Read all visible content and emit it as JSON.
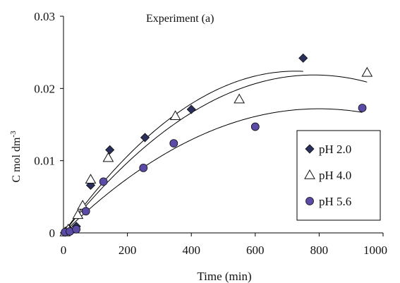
{
  "chart_data": {
    "type": "scatter",
    "title": "Experiment (a)",
    "xlabel": "Time (min)",
    "ylabel": "C mol dm",
    "ylabel_superscript": "-3",
    "xlim": [
      0,
      1000
    ],
    "ylim": [
      0,
      0.03
    ],
    "x_ticks": [
      0,
      200,
      400,
      600,
      800,
      1000
    ],
    "x_tick_labels": [
      "0",
      "200",
      "400",
      "600",
      "800",
      "1000"
    ],
    "y_ticks": [
      0,
      0.01,
      0.02,
      0.03
    ],
    "y_tick_labels": [
      "0",
      "0.01",
      "0.02",
      "0.03"
    ],
    "grid": false,
    "legend_position": "right",
    "series": [
      {
        "name": "pH 2.0",
        "marker": "diamond",
        "color": "#2b2f5c",
        "points": [
          [
            5,
            0.0001
          ],
          [
            10,
            0.0003
          ],
          [
            20,
            0.0004
          ],
          [
            40,
            0.0009
          ],
          [
            85,
            0.0066
          ],
          [
            145,
            0.0115
          ],
          [
            255,
            0.0132
          ],
          [
            400,
            0.0171
          ],
          [
            750,
            0.0242
          ]
        ],
        "fit": [
          -4.25e-08,
          6.17e-05,
          0.0
        ]
      },
      {
        "name": "pH 4.0",
        "marker": "triangle",
        "color": "#ffffff",
        "points": [
          [
            5,
            0.0001
          ],
          [
            15,
            0.0005
          ],
          [
            45,
            0.0025
          ],
          [
            60,
            0.0038
          ],
          [
            85,
            0.0074
          ],
          [
            140,
            0.0104
          ],
          [
            350,
            0.0162
          ],
          [
            550,
            0.0185
          ],
          [
            950,
            0.0222
          ]
        ],
        "fit": [
          -3.56e-08,
          5.58e-05,
          0.0
        ]
      },
      {
        "name": "pH 5.6",
        "marker": "circle",
        "color": "#5b4aa6",
        "points": [
          [
            5,
            0.0001
          ],
          [
            20,
            0.0002
          ],
          [
            40,
            0.0005
          ],
          [
            70,
            0.003
          ],
          [
            125,
            0.0071
          ],
          [
            250,
            0.009
          ],
          [
            345,
            0.0124
          ],
          [
            600,
            0.0147
          ],
          [
            935,
            0.0173
          ]
        ],
        "fit": [
          -2.69e-08,
          4.3e-05,
          0.0
        ]
      }
    ]
  }
}
